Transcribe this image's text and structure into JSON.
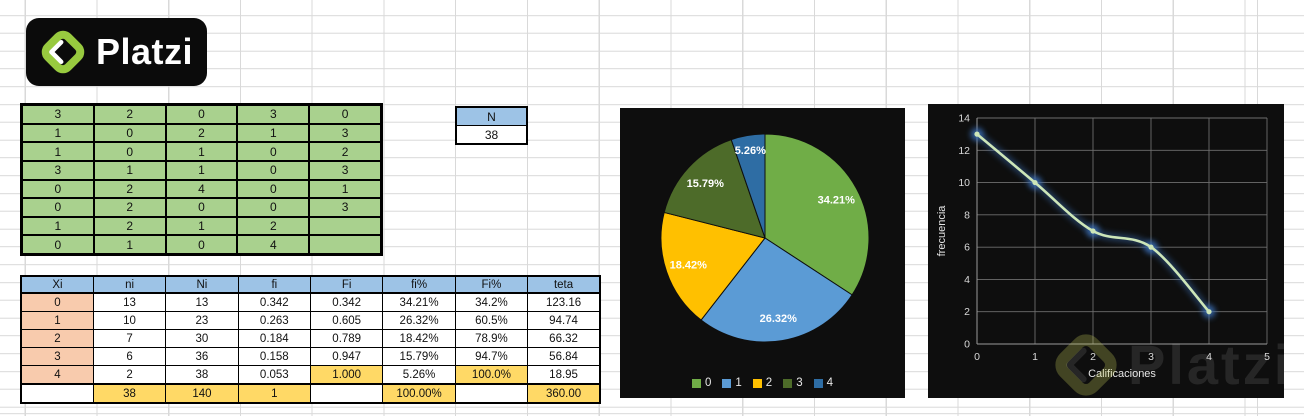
{
  "logo": {
    "text": "Platzi"
  },
  "colors": {
    "table_green": "#a9d18e",
    "header_blue": "#9dc3e6",
    "cell_peach": "#f8cbad",
    "cell_yellow": "#ffd966",
    "panel_black": "#0e0e0e",
    "platzi_green": "#98ca3f"
  },
  "raw_table": {
    "rows": [
      [
        "3",
        "2",
        "0",
        "3",
        "0"
      ],
      [
        "1",
        "0",
        "2",
        "1",
        "3"
      ],
      [
        "1",
        "0",
        "1",
        "0",
        "2"
      ],
      [
        "3",
        "1",
        "1",
        "0",
        "3"
      ],
      [
        "0",
        "2",
        "4",
        "0",
        "1"
      ],
      [
        "0",
        "2",
        "0",
        "0",
        "3"
      ],
      [
        "1",
        "2",
        "1",
        "2",
        ""
      ],
      [
        "0",
        "1",
        "0",
        "4",
        ""
      ]
    ]
  },
  "n_box": {
    "label": "N",
    "value": "38"
  },
  "freq_table": {
    "headers": [
      "Xi",
      "ni",
      "Ni",
      "fi",
      "Fi",
      "fi%",
      "Fi%",
      "teta"
    ],
    "rows": [
      [
        "0",
        "13",
        "13",
        "0.342",
        "0.342",
        "34.21%",
        "34.2%",
        "123.16"
      ],
      [
        "1",
        "10",
        "23",
        "0.263",
        "0.605",
        "26.32%",
        "60.5%",
        "94.74"
      ],
      [
        "2",
        "7",
        "30",
        "0.184",
        "0.789",
        "18.42%",
        "78.9%",
        "66.32"
      ],
      [
        "3",
        "6",
        "36",
        "0.158",
        "0.947",
        "15.79%",
        "94.7%",
        "56.84"
      ],
      [
        "4",
        "2",
        "38",
        "0.053",
        "1.000",
        "5.26%",
        "100.0%",
        "18.95"
      ]
    ],
    "total_row": [
      "",
      "38",
      "140",
      "1",
      "",
      "100.00%",
      "",
      "360.00"
    ]
  },
  "chart_data": [
    {
      "type": "pie",
      "labels": [
        "0",
        "1",
        "2",
        "3",
        "4"
      ],
      "values": [
        34.21,
        26.32,
        18.42,
        15.79,
        5.26
      ],
      "slice_labels": [
        "34.21%",
        "26.32%",
        "18.42%",
        "15.79%",
        "5.26%"
      ],
      "colors": [
        "#70ad47",
        "#5b9bd5",
        "#ffc000",
        "#4d6b29",
        "#2e6da4"
      ],
      "legend": [
        "0",
        "1",
        "2",
        "3",
        "4"
      ],
      "legend_position": "bottom",
      "background": "#0e0e0e",
      "start_angle_deg": 0,
      "direction": "clockwise"
    },
    {
      "type": "line",
      "x": [
        0,
        1,
        2,
        3,
        4
      ],
      "y": [
        13,
        10,
        7,
        6,
        2
      ],
      "xlabel": "Calificaciones",
      "ylabel": "frecuencia",
      "xlim": [
        0,
        5
      ],
      "ylim": [
        0,
        14
      ],
      "x_ticks": [
        "0",
        "1",
        "2",
        "3",
        "4",
        "5"
      ],
      "y_ticks": [
        "0",
        "2",
        "4",
        "6",
        "8",
        "10",
        "12",
        "14"
      ],
      "grid": true,
      "smooth": true,
      "line_color": "#cde6b8",
      "marker_glow_color": "#3a6fb8",
      "background": "#0e0e0e"
    }
  ],
  "watermark": {
    "text": "Platzi"
  }
}
